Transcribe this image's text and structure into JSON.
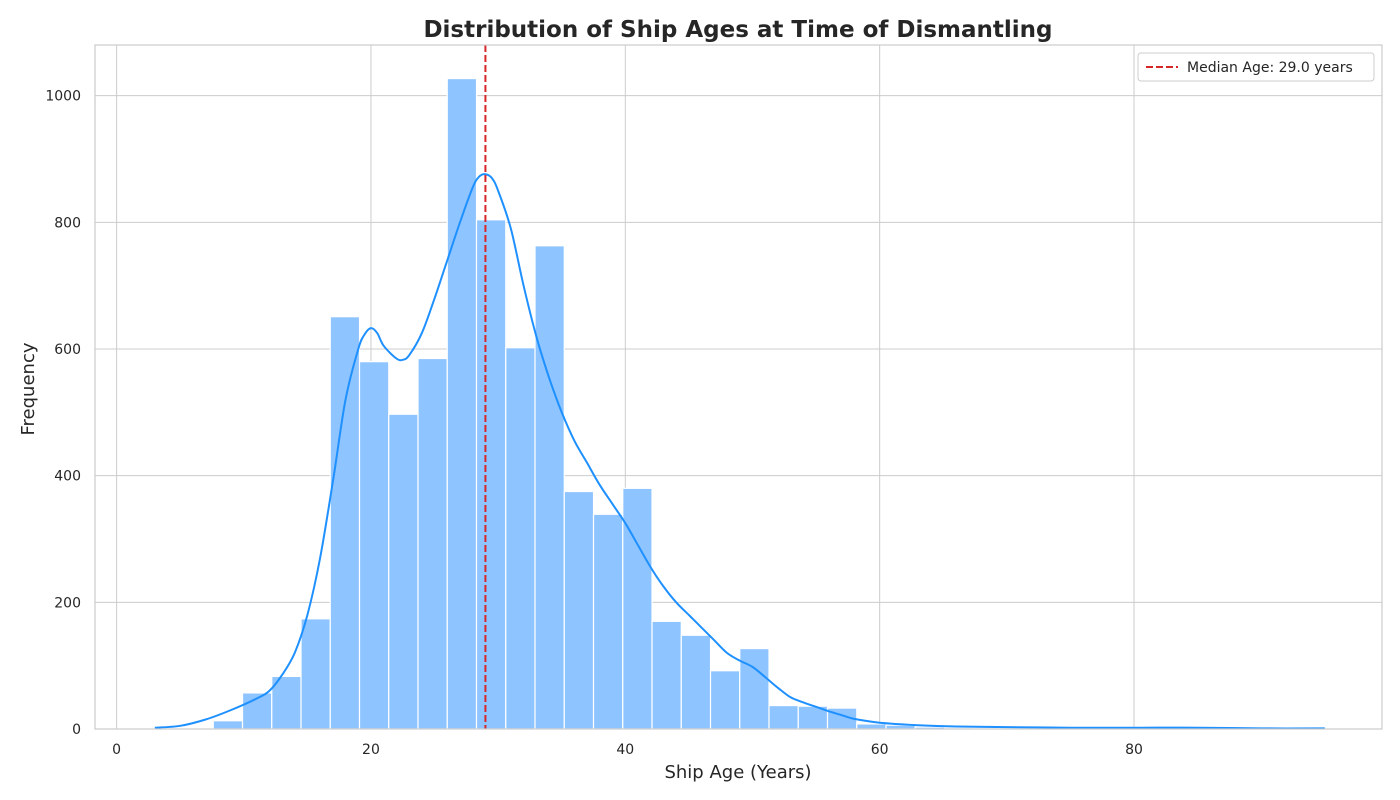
{
  "chart_data": {
    "type": "bar",
    "title": "Distribution of Ship Ages at Time of Dismantling",
    "xlabel": "Ship Age (Years)",
    "ylabel": "Frequency",
    "xlim": [
      -1.7,
      99.5
    ],
    "ylim": [
      0,
      1080
    ],
    "x_ticks": [
      0,
      20,
      40,
      60,
      80
    ],
    "y_ticks": [
      0,
      200,
      400,
      600,
      800,
      1000
    ],
    "grid": true,
    "legend_position": "top-right",
    "bin_width": 2.3,
    "bins": [
      {
        "start": 7.6,
        "value": 13
      },
      {
        "start": 9.9,
        "value": 57
      },
      {
        "start": 12.2,
        "value": 83
      },
      {
        "start": 14.5,
        "value": 174
      },
      {
        "start": 16.8,
        "value": 651
      },
      {
        "start": 19.1,
        "value": 580
      },
      {
        "start": 21.4,
        "value": 497
      },
      {
        "start": 23.7,
        "value": 585
      },
      {
        "start": 26.0,
        "value": 1027
      },
      {
        "start": 28.3,
        "value": 804
      },
      {
        "start": 30.6,
        "value": 602
      },
      {
        "start": 32.9,
        "value": 763
      },
      {
        "start": 35.2,
        "value": 375
      },
      {
        "start": 37.5,
        "value": 339
      },
      {
        "start": 39.8,
        "value": 380
      },
      {
        "start": 42.1,
        "value": 170
      },
      {
        "start": 44.4,
        "value": 148
      },
      {
        "start": 46.7,
        "value": 92
      },
      {
        "start": 49.0,
        "value": 127
      },
      {
        "start": 51.3,
        "value": 37
      },
      {
        "start": 53.6,
        "value": 36
      },
      {
        "start": 55.9,
        "value": 33
      },
      {
        "start": 58.2,
        "value": 8
      },
      {
        "start": 60.5,
        "value": 6
      },
      {
        "start": 62.8,
        "value": 3
      },
      {
        "start": 65.1,
        "value": 2
      },
      {
        "start": 67.4,
        "value": 1
      },
      {
        "start": 69.7,
        "value": 1
      },
      {
        "start": 72.0,
        "value": 2
      },
      {
        "start": 74.3,
        "value": 2
      },
      {
        "start": 76.6,
        "value": 1
      },
      {
        "start": 78.9,
        "value": 3
      },
      {
        "start": 81.2,
        "value": 2
      },
      {
        "start": 83.5,
        "value": 1
      },
      {
        "start": 92.7,
        "value": 2
      }
    ],
    "series": [
      {
        "name": "KDE",
        "type": "line",
        "x": [
          3,
          5,
          7,
          9,
          11,
          12,
          13,
          14,
          15,
          16,
          17,
          18,
          19,
          19.5,
          20,
          20.5,
          21,
          22,
          22.5,
          23,
          24,
          25,
          26,
          27,
          28,
          28.5,
          29,
          29.5,
          30,
          31,
          32,
          33,
          34,
          35,
          36,
          37,
          38,
          39,
          40,
          41,
          42,
          43,
          44,
          45,
          46,
          47,
          48,
          49,
          50,
          51,
          52,
          53,
          54,
          55,
          56,
          57,
          58,
          60,
          63,
          66,
          70,
          75,
          80,
          85,
          90,
          95
        ],
        "y": [
          2,
          5,
          15,
          30,
          48,
          60,
          85,
          120,
          180,
          270,
          390,
          520,
          600,
          623,
          633,
          625,
          605,
          585,
          583,
          590,
          625,
          680,
          740,
          800,
          855,
          872,
          876,
          870,
          850,
          790,
          700,
          620,
          555,
          500,
          455,
          420,
          385,
          355,
          325,
          290,
          255,
          225,
          200,
          180,
          160,
          140,
          120,
          108,
          98,
          82,
          65,
          50,
          42,
          35,
          28,
          22,
          16,
          10,
          6,
          4,
          3,
          2,
          2,
          2,
          1,
          1
        ],
        "color": "#1e90ff"
      }
    ],
    "median": {
      "value": 29.0,
      "label": "Median Age: 29.0 years",
      "color": "#d62728"
    },
    "colors": {
      "bars": "#8ec4ff",
      "bar_edge": "#ffffff",
      "kde": "#1e90ff",
      "grid": "#cccccc",
      "spine": "#cccccc"
    }
  }
}
